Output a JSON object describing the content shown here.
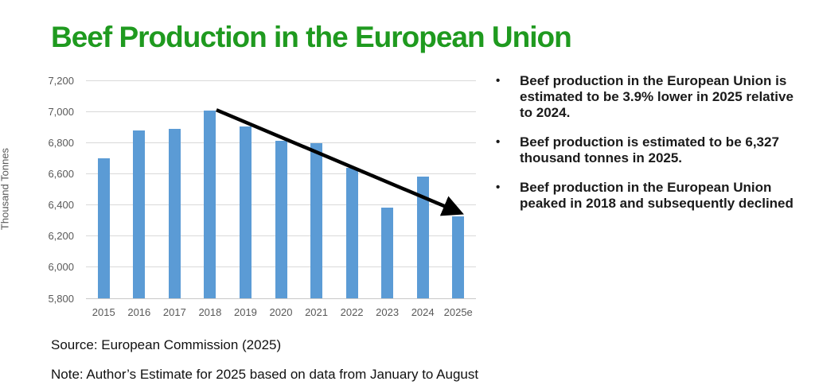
{
  "title": "Beef Production in the European Union",
  "colors": {
    "title_green": "#1f9a1f",
    "bar_blue": "#5b9bd5",
    "axis_gray": "#595959",
    "gridline_gray": "#d9d9d9",
    "arrow_black": "#000000"
  },
  "chart_data": {
    "type": "bar",
    "categories": [
      "2015",
      "2016",
      "2017",
      "2018",
      "2019",
      "2020",
      "2021",
      "2022",
      "2023",
      "2024",
      "2025e"
    ],
    "values": [
      6700,
      6880,
      6890,
      7005,
      6905,
      6810,
      6795,
      6640,
      6385,
      6584,
      6327
    ],
    "title": "",
    "xlabel": "",
    "ylabel": "Thousand Tonnes",
    "ylim": [
      5800,
      7200
    ],
    "ytick_step": 200,
    "yticks": [
      "7,200",
      "7,000",
      "6,800",
      "6,600",
      "6,400",
      "6,200",
      "6,000",
      "5,800"
    ],
    "grid": true,
    "legend": false,
    "annotations": [
      {
        "type": "arrow",
        "from_category": "2018",
        "to_category": "2025e",
        "meaning": "decline from 2018 peak to 2025 estimate"
      }
    ]
  },
  "bullets": {
    "items": [
      "Beef production in the European Union is estimated to be 3.9% lower in 2025 relative to 2024.",
      "Beef production is estimated to be 6,327 thousand tonnes in 2025.",
      "Beef production in the European Union peaked in 2018 and subsequently declined"
    ]
  },
  "source": "Source: European Commission (2025)",
  "note": "Note: Author’s Estimate for 2025 based on data from January to August"
}
